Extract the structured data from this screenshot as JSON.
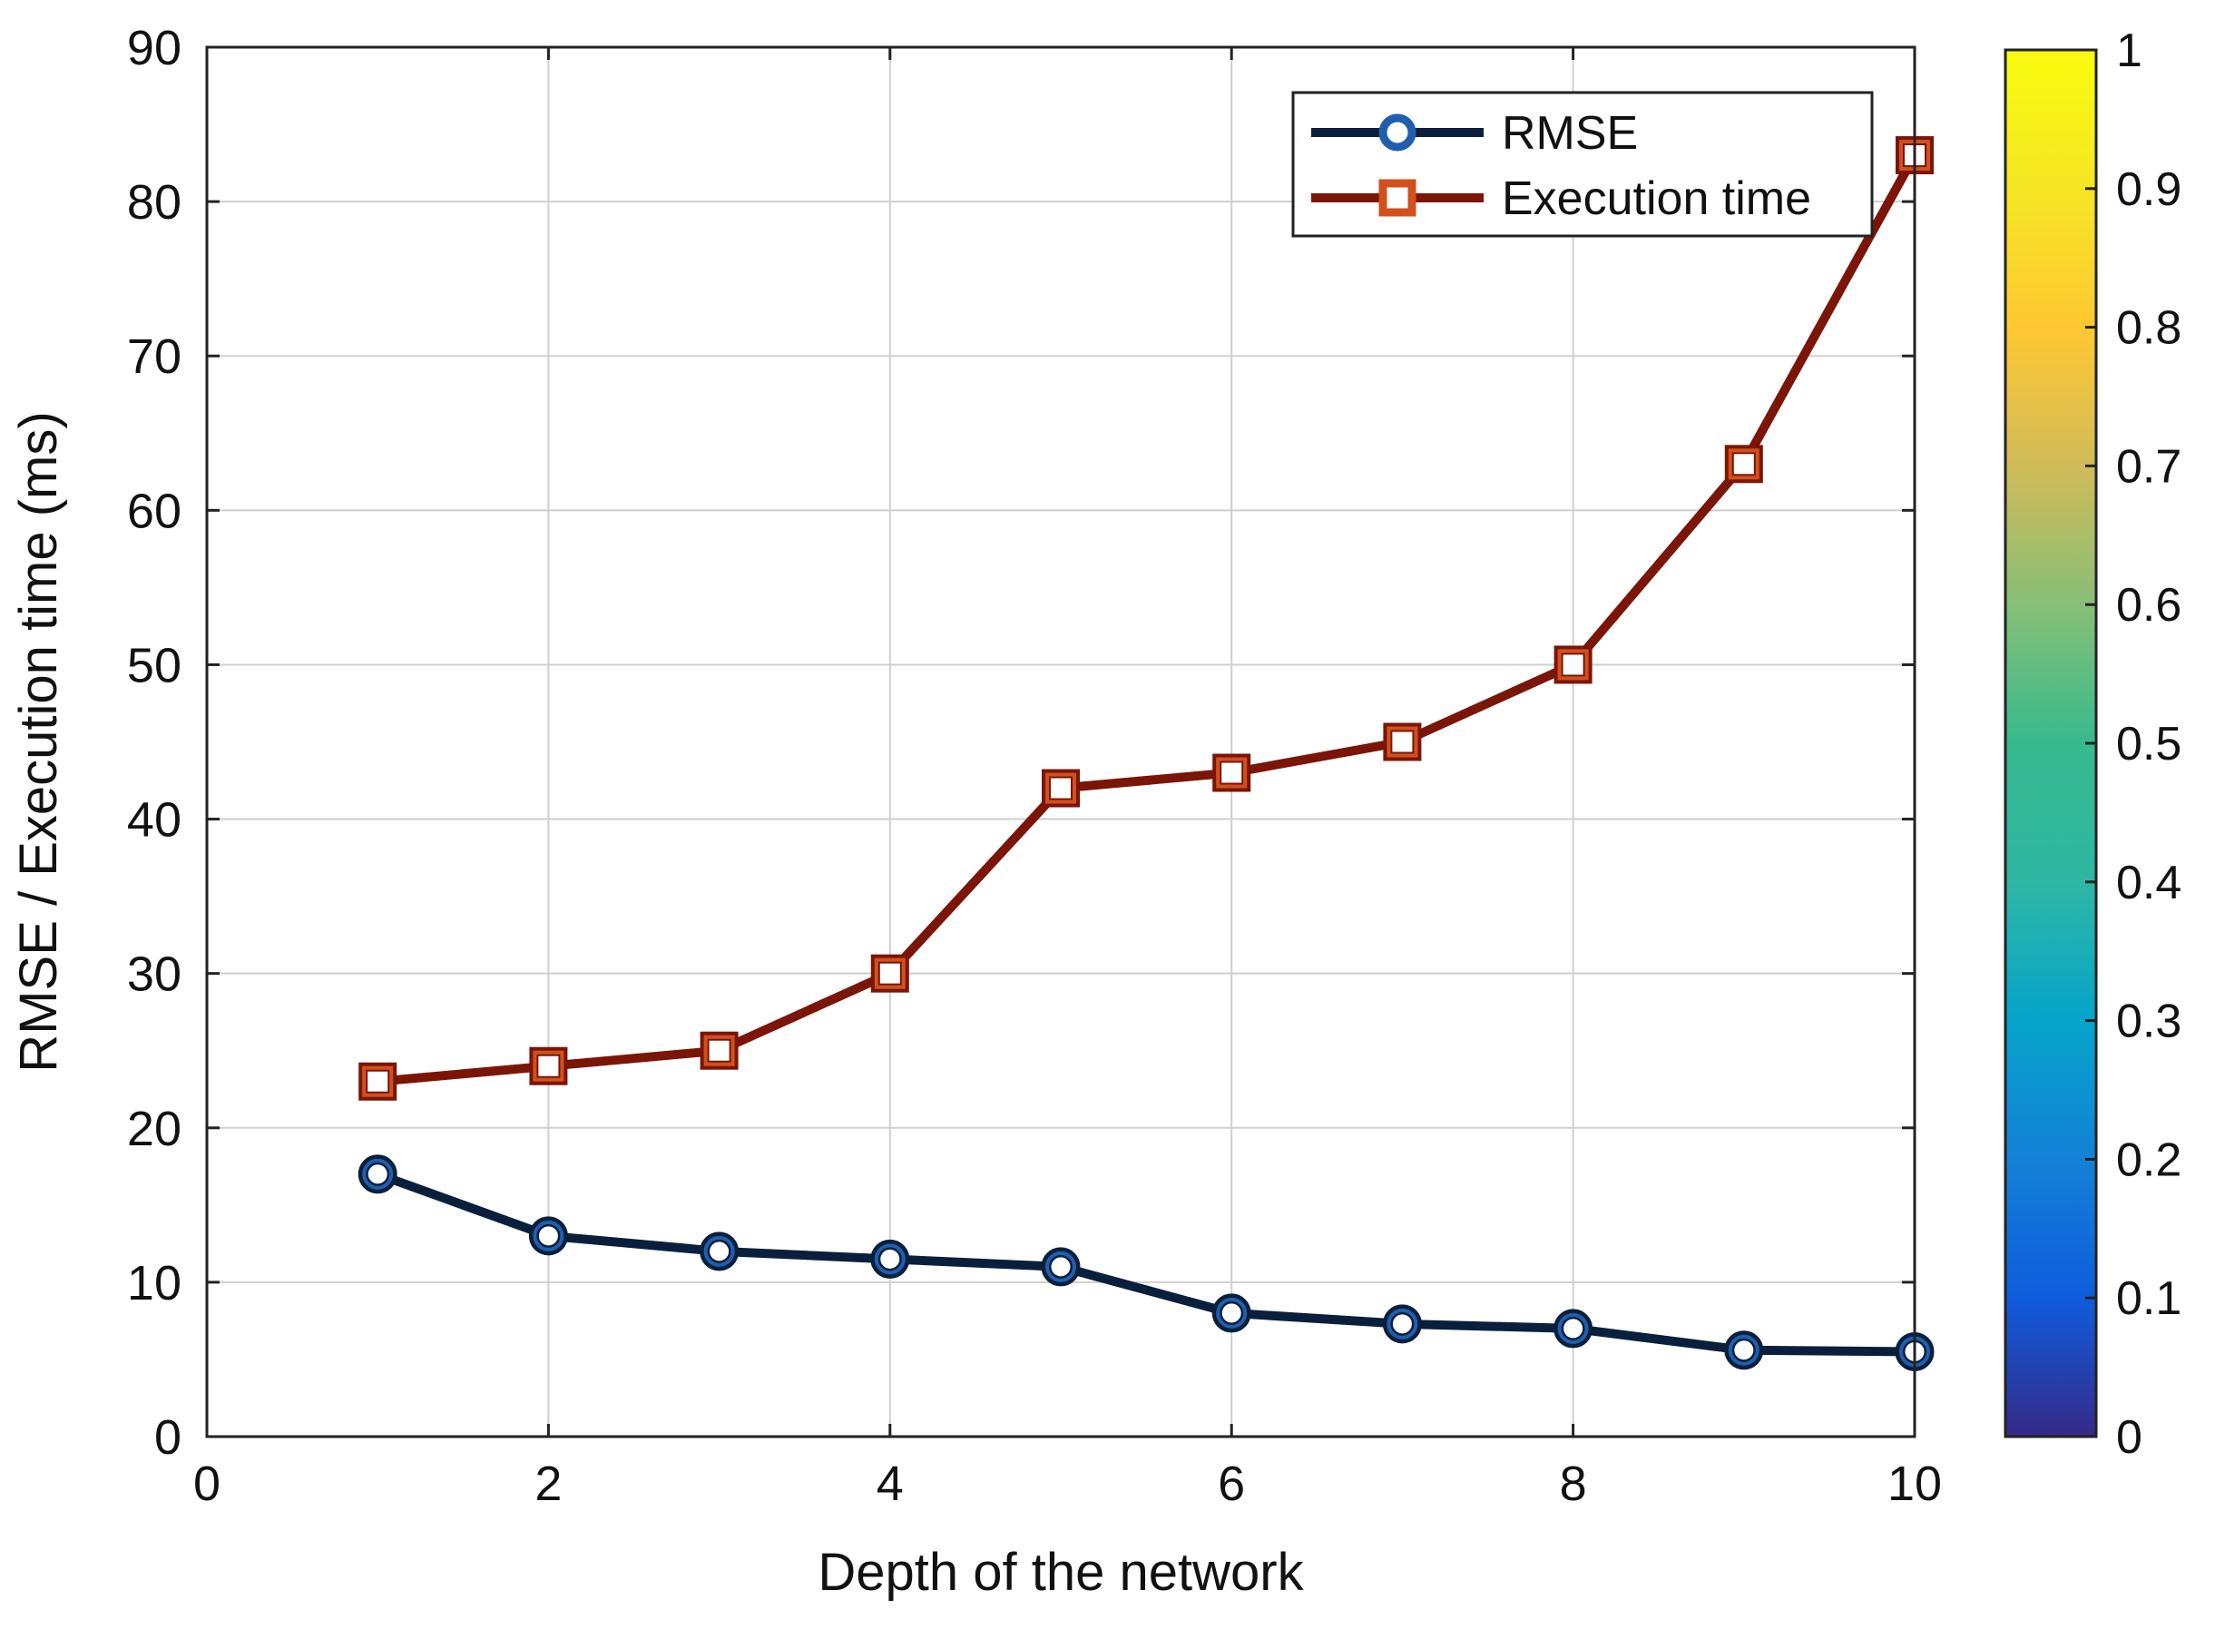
{
  "chart_data": {
    "type": "line",
    "xlabel": "Depth of the network",
    "ylabel": "RMSE / Execution time (ms)",
    "xlim": [
      0,
      10
    ],
    "ylim": [
      0,
      90
    ],
    "x_ticks": [
      "0",
      "2",
      "4",
      "6",
      "8",
      "10"
    ],
    "y_ticks": [
      "0",
      "10",
      "20",
      "30",
      "40",
      "50",
      "60",
      "70",
      "80",
      "90"
    ],
    "grid": true,
    "legend_position": "top-right",
    "x": [
      1,
      2,
      3,
      4,
      5,
      6,
      7,
      8,
      9,
      10
    ],
    "series": [
      {
        "name": "RMSE",
        "values": [
          17,
          13,
          12,
          11.5,
          11,
          8,
          7.3,
          7,
          5.6,
          5.5
        ],
        "color": "#0a1f3c",
        "marker_color": "#1f5fae",
        "marker": "circle"
      },
      {
        "name": "Execution time",
        "values": [
          23,
          24,
          25,
          30,
          42,
          43,
          45,
          50,
          63,
          83
        ],
        "color": "#7a1508",
        "marker_color": "#d2501c",
        "marker": "square"
      }
    ],
    "colorbar": {
      "ticks": [
        "0",
        "0.1",
        "0.2",
        "0.3",
        "0.4",
        "0.5",
        "0.6",
        "0.7",
        "0.8",
        "0.9",
        "1"
      ],
      "range": [
        0,
        1
      ],
      "colormap": "parula"
    }
  }
}
